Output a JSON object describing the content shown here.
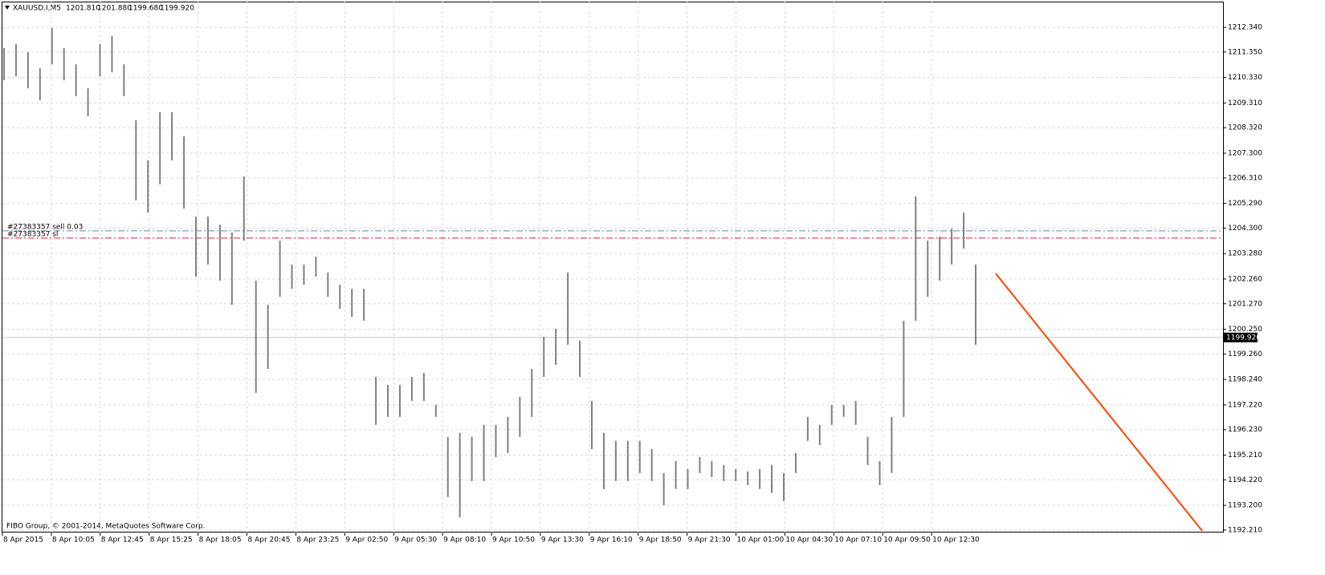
{
  "chart_data": {
    "type": "ohlc",
    "title": "XAUUSD.I,M5",
    "last_bar": {
      "values": [
        1201.81,
        1201.88,
        1199.68,
        1199.92
      ],
      "value_labels": [
        "1201.810",
        "1201.880",
        "1199.680",
        "1199.920"
      ]
    },
    "color": "#808080",
    "high": [
      1211.51,
      1211.67,
      1211.34,
      1210.7,
      1212.31,
      1211.51,
      1210.86,
      1209.9,
      1211.67,
      1211.99,
      1210.86,
      1208.62,
      1207.01,
      1208.94,
      1208.94,
      1207.97,
      1204.76,
      1204.76,
      1204.44,
      1204.12,
      1206.37,
      1202.2,
      1201.23,
      1203.8,
      1202.84,
      1202.84,
      1203.16,
      1202.52,
      1202.03,
      1201.87,
      1201.87,
      1198.34,
      1198.02,
      1198.02,
      1198.34,
      1198.5,
      1197.22,
      1195.94,
      1196.1,
      1195.94,
      1196.42,
      1196.42,
      1196.74,
      1197.54,
      1198.66,
      1199.95,
      1200.27,
      1202.52,
      1199.79,
      1197.38,
      1196.1,
      1195.78,
      1195.78,
      1195.78,
      1195.45,
      1194.49,
      1194.97,
      1194.65,
      1195.13,
      1194.97,
      1194.81,
      1194.65,
      1194.56,
      1194.65,
      1194.81,
      1194.49,
      1195.29,
      1196.74,
      1196.42,
      1197.22,
      1197.22,
      1197.38,
      1195.94,
      1194.97,
      1196.74,
      1200.59,
      1205.57,
      1203.8,
      1203.96,
      1204.28,
      1204.92,
      1202.84
    ],
    "low": [
      1210.22,
      1210.38,
      1209.9,
      1209.42,
      1210.86,
      1210.22,
      1209.58,
      1208.78,
      1210.38,
      1210.54,
      1209.58,
      1205.41,
      1204.92,
      1206.05,
      1207.01,
      1205.08,
      1202.36,
      1202.84,
      1202.2,
      1201.23,
      1203.8,
      1197.7,
      1198.66,
      1201.55,
      1201.87,
      1202.03,
      1202.36,
      1201.55,
      1201.07,
      1200.75,
      1200.59,
      1196.42,
      1196.74,
      1196.74,
      1197.38,
      1197.38,
      1196.74,
      1193.53,
      1192.72,
      1194.17,
      1194.17,
      1195.13,
      1195.29,
      1195.94,
      1196.74,
      1198.34,
      1198.82,
      1199.63,
      1198.34,
      1195.45,
      1193.85,
      1194.17,
      1194.17,
      1194.49,
      1194.17,
      1193.21,
      1193.85,
      1193.85,
      1194.49,
      1194.33,
      1194.17,
      1194.17,
      1194.01,
      1193.85,
      1193.69,
      1193.37,
      1194.49,
      1195.78,
      1195.61,
      1196.42,
      1196.74,
      1196.42,
      1194.81,
      1194.01,
      1194.49,
      1196.74,
      1200.59,
      1201.55,
      1202.2,
      1202.84,
      1203.48,
      1199.63
    ],
    "ylim": [
      1192.11,
      1213.37
    ],
    "yticks": [
      {
        "value": 1212.34,
        "label": "1212.340"
      },
      {
        "value": 1211.35,
        "label": "1211.350"
      },
      {
        "value": 1210.33,
        "label": "1210.330"
      },
      {
        "value": 1209.31,
        "label": "1209.310"
      },
      {
        "value": 1208.32,
        "label": "1208.320"
      },
      {
        "value": 1207.3,
        "label": "1207.300"
      },
      {
        "value": 1206.31,
        "label": "1206.310"
      },
      {
        "value": 1205.29,
        "label": "1205.290"
      },
      {
        "value": 1204.3,
        "label": "1204.300"
      },
      {
        "value": 1203.28,
        "label": "1203.280"
      },
      {
        "value": 1202.26,
        "label": "1202.260"
      },
      {
        "value": 1201.27,
        "label": "1201.270"
      },
      {
        "value": 1200.25,
        "label": "1200.250"
      },
      {
        "value": 1199.26,
        "label": "1199.260"
      },
      {
        "value": 1198.24,
        "label": "1198.240"
      },
      {
        "value": 1197.22,
        "label": "1197.220"
      },
      {
        "value": 1196.23,
        "label": "1196.230"
      },
      {
        "value": 1195.21,
        "label": "1195.210"
      },
      {
        "value": 1194.22,
        "label": "1194.220"
      },
      {
        "value": 1193.2,
        "label": "1193.200"
      },
      {
        "value": 1192.21,
        "label": "1192.210"
      }
    ],
    "xticks": [
      "8 Apr 2015",
      "8 Apr 10:05",
      "8 Apr 12:45",
      "8 Apr 15:25",
      "8 Apr 18:05",
      "8 Apr 20:45",
      "8 Apr 23:25",
      "9 Apr 02:50",
      "9 Apr 05:30",
      "9 Apr 08:10",
      "9 Apr 10:50",
      "9 Apr 13:30",
      "9 Apr 16:10",
      "9 Apr 18:50",
      "9 Apr 21:30",
      "10 Apr 01:00",
      "10 Apr 04:30",
      "10 Apr 07:10",
      "10 Apr 09:50",
      "10 Apr 12:30"
    ],
    "grid": true,
    "current_price": {
      "value": 1199.92,
      "label": "1199.920"
    },
    "order_lines": [
      {
        "name": "#27383357 sell 0.03",
        "value": 1204.19,
        "color": "#5b87b5"
      },
      {
        "name": "#27383357 sl",
        "value": 1203.9,
        "color": "#e0202a"
      }
    ],
    "trendline": {
      "values": [
        1202.48,
        1192.18
      ],
      "color": "#ff4500"
    },
    "copyright": "FIBO Group, © 2001-2014, MetaQuotes Software Corp."
  }
}
